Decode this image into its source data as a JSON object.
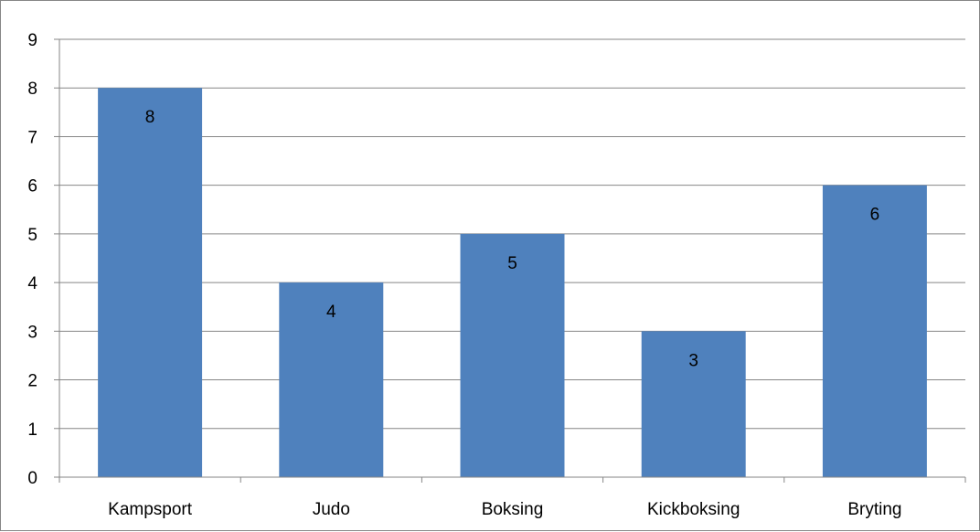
{
  "chart_data": {
    "type": "bar",
    "categories": [
      "Kampsport",
      "Judo",
      "Boksing",
      "Kickboksing",
      "Bryting"
    ],
    "series": [
      {
        "values": [
          8,
          4,
          5,
          3,
          6
        ],
        "color": "#4F81BD"
      }
    ],
    "ylim": [
      0,
      9
    ],
    "yticks": [
      0,
      1,
      2,
      3,
      4,
      5,
      6,
      7,
      8,
      9
    ],
    "grid": true,
    "data_labels": true,
    "title": "",
    "xlabel": "",
    "ylabel": "",
    "legend": "none"
  }
}
